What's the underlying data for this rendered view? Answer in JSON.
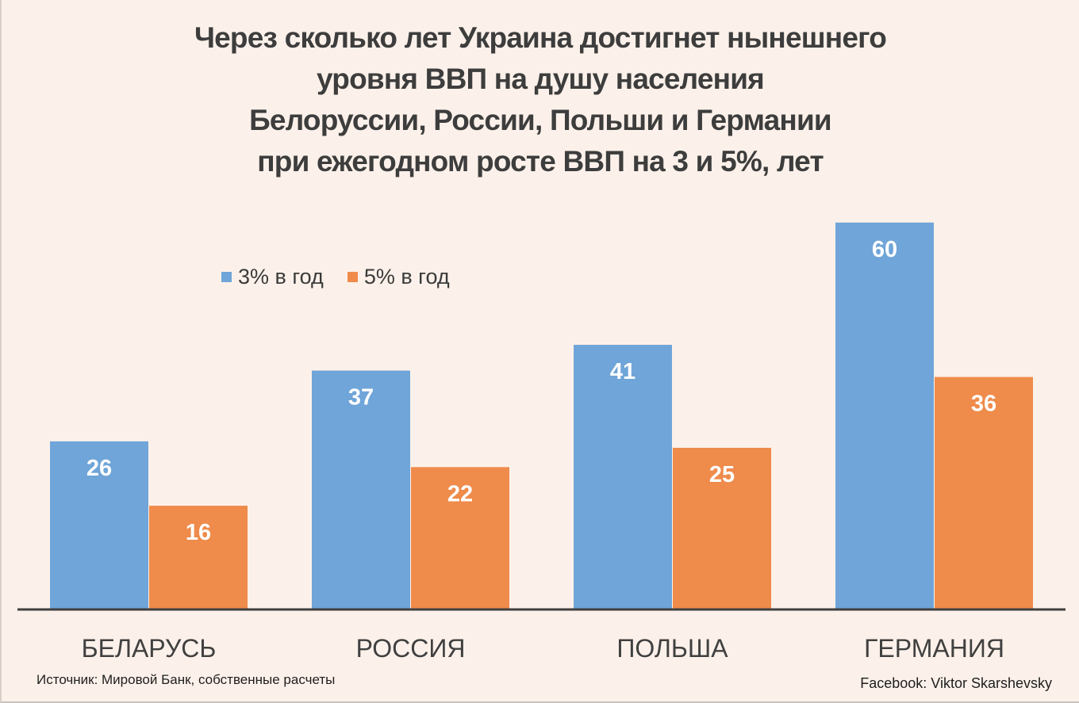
{
  "title_lines": [
    "Через сколько лет Украина достигнет нынешнего",
    "уровня ВВП на душу населения",
    "Белоруссии, России, Польши и Германии",
    "при ежегодном росте ВВП на 3 и 5%, лет"
  ],
  "source": "Источник: Мировой Банк, собственные расчеты",
  "credit": "Facebook: Viktor Skarshevsky",
  "colors": {
    "background": "#fcf1ea",
    "series_3pct": "#6fa5d8",
    "series_5pct": "#ef8b4b",
    "axis": "#404040"
  },
  "chart_data": {
    "type": "bar",
    "title": "Через сколько лет Украина достигнет нынешнего уровня ВВП на душу населения Белоруссии, России, Польши и Германии при ежегодном росте ВВП на 3 и 5%, лет",
    "xlabel": "",
    "ylabel": "",
    "categories": [
      "БЕЛАРУСЬ",
      "РОССИЯ",
      "ПОЛЬША",
      "ГЕРМАНИЯ"
    ],
    "series": [
      {
        "name": "3% в год",
        "color": "#6fa5d8",
        "values": [
          26,
          37,
          41,
          60
        ]
      },
      {
        "name": "5% в год",
        "color": "#ef8b4b",
        "values": [
          16,
          22,
          25,
          36
        ]
      }
    ],
    "ylim": [
      0,
      60
    ],
    "grid": false,
    "legend": "top-left",
    "data_labels": true
  }
}
